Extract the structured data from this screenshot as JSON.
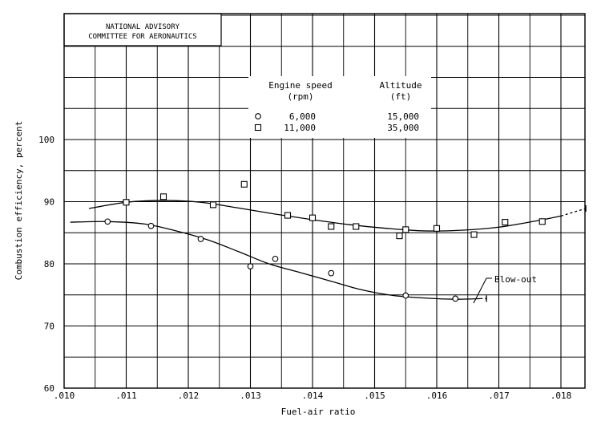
{
  "header": {
    "line1": "NATIONAL ADVISORY",
    "line2": "COMMITTEE FOR AERONAUTICS"
  },
  "chart_data": {
    "type": "scatter",
    "xlabel": "Fuel-air ratio",
    "ylabel": "Combustion efficiency, percent",
    "xlim": [
      0.01,
      0.0185
    ],
    "ylim": [
      60,
      120
    ],
    "grid": true,
    "x_ticks": [
      ".010",
      ".011",
      ".012",
      ".013",
      ".014",
      ".015",
      ".016",
      ".017",
      ".018"
    ],
    "y_ticks": [
      "60",
      "70",
      "80",
      "90",
      "100"
    ],
    "legend": {
      "placement": "top-center",
      "header_col1": "Engine speed",
      "header_col1_unit": "(rpm)",
      "header_col2": "Altitude",
      "header_col2_unit": "(ft)",
      "rows": [
        {
          "marker": "circle",
          "speed": "6,000",
          "altitude": "15,000"
        },
        {
          "marker": "square",
          "speed": "11,000",
          "altitude": "35,000"
        }
      ]
    },
    "series": [
      {
        "marker": "circle",
        "points": [
          [
            0.0107,
            86.8
          ],
          [
            0.0114,
            86.1
          ],
          [
            0.0122,
            84.0
          ],
          [
            0.013,
            79.6
          ],
          [
            0.0134,
            80.8
          ],
          [
            0.0143,
            78.5
          ],
          [
            0.0155,
            74.9
          ],
          [
            0.0163,
            74.4
          ]
        ],
        "curve": [
          [
            0.0101,
            86.7
          ],
          [
            0.0107,
            86.8
          ],
          [
            0.0113,
            86.4
          ],
          [
            0.0118,
            85.3
          ],
          [
            0.0123,
            83.9
          ],
          [
            0.0128,
            82.0
          ],
          [
            0.0133,
            80.0
          ],
          [
            0.0138,
            78.6
          ],
          [
            0.0143,
            77.2
          ],
          [
            0.0148,
            75.8
          ],
          [
            0.0153,
            74.9
          ],
          [
            0.0158,
            74.5
          ],
          [
            0.0163,
            74.3
          ],
          [
            0.0167,
            74.4
          ]
        ],
        "curve_extension": [
          [
            0.0167,
            74.4
          ],
          [
            0.0168,
            74.4
          ]
        ]
      },
      {
        "marker": "square",
        "points": [
          [
            0.011,
            89.9
          ],
          [
            0.0116,
            90.8
          ],
          [
            0.0124,
            89.5
          ],
          [
            0.0129,
            92.8
          ],
          [
            0.0136,
            87.8
          ],
          [
            0.014,
            87.4
          ],
          [
            0.0143,
            86.0
          ],
          [
            0.0147,
            86.0
          ],
          [
            0.0154,
            84.5
          ],
          [
            0.0155,
            85.5
          ],
          [
            0.016,
            85.7
          ],
          [
            0.0166,
            84.7
          ],
          [
            0.0171,
            86.7
          ],
          [
            0.0177,
            86.8
          ]
        ],
        "curve": [
          [
            0.0104,
            88.9
          ],
          [
            0.011,
            89.9
          ],
          [
            0.0116,
            90.2
          ],
          [
            0.0122,
            89.9
          ],
          [
            0.0128,
            89.0
          ],
          [
            0.0134,
            88.0
          ],
          [
            0.014,
            87.1
          ],
          [
            0.0146,
            86.3
          ],
          [
            0.0152,
            85.7
          ],
          [
            0.0158,
            85.3
          ],
          [
            0.0164,
            85.4
          ],
          [
            0.017,
            85.9
          ],
          [
            0.0176,
            86.9
          ],
          [
            0.018,
            87.7
          ]
        ],
        "curve_extension": [
          [
            0.018,
            87.7
          ],
          [
            0.0184,
            88.9
          ]
        ]
      }
    ],
    "annotation": {
      "text": "Blow-out"
    }
  }
}
